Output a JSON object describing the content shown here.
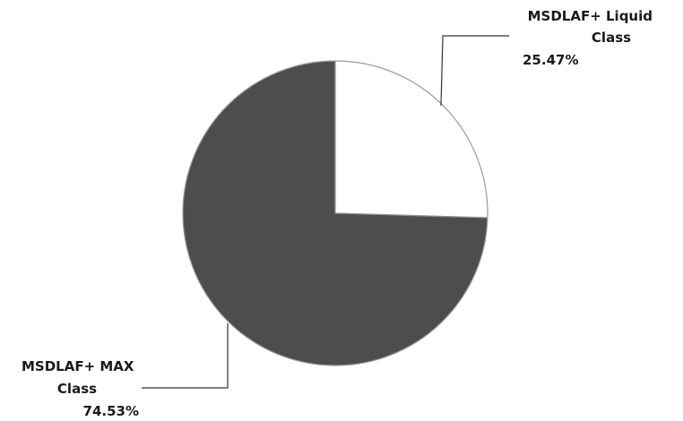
{
  "chart_data": {
    "type": "pie",
    "slices": [
      {
        "label_lines": [
          "MSDLAF+ Liquid",
          "Class"
        ],
        "percent_label": "25.47%",
        "value": 25.47,
        "color": "#ffffff"
      },
      {
        "label_lines": [
          "MSDLAF+ MAX",
          "Class"
        ],
        "percent_label": "74.53%",
        "value": 74.53,
        "color": "#4d4d4d"
      }
    ],
    "start_angle_deg": 0,
    "direction": "clockwise",
    "legend": "none"
  }
}
